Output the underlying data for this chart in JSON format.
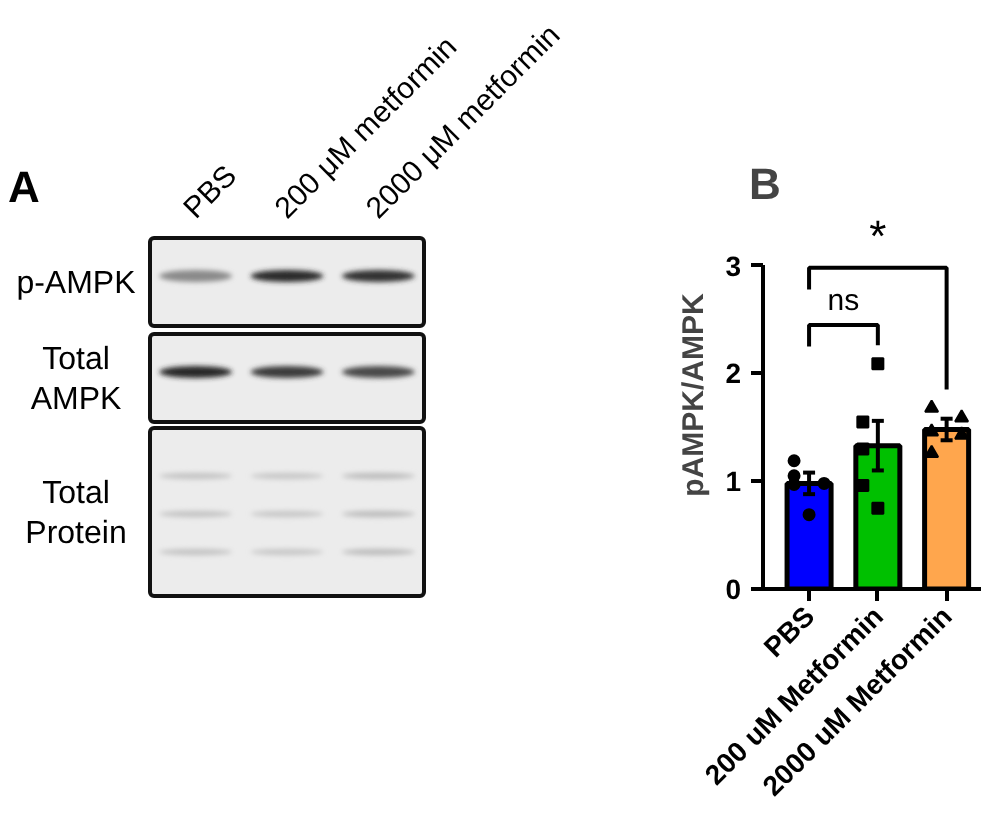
{
  "chart_data": [
    {
      "type": "other",
      "title": "A",
      "categories": [
        "PBS",
        "200 μM metformin",
        "2000 μM metformin"
      ],
      "annotations": [
        "p-AMPK",
        "Total AMPK",
        "Total Protein"
      ]
    },
    {
      "type": "bar",
      "title": "B",
      "ylabel": "pAMPK/AMPK",
      "categories": [
        "PBS",
        "200 uM Metformin",
        "2000 uM Metformin"
      ],
      "values": [
        0.98,
        1.33,
        1.48
      ],
      "colors": [
        "#0000ff",
        "#00c000",
        "#ffa64d"
      ],
      "errors": [
        0.1,
        0.23,
        0.1
      ],
      "ylim": [
        0,
        3
      ],
      "yticks": [
        0,
        1,
        2,
        3
      ],
      "grid": false,
      "annotations": [
        "ns",
        "*"
      ],
      "series": [
        {
          "type": "scatter",
          "marker": "circle",
          "color": "#000000",
          "x": [
            "PBS",
            "PBS",
            "PBS",
            "PBS",
            "PBS"
          ],
          "values": [
            1.19,
            1.05,
            0.98,
            0.97,
            0.69
          ]
        },
        {
          "type": "scatter",
          "marker": "square",
          "color": "#000000",
          "x": [
            "200 uM Metformin",
            "200 uM Metformin",
            "200 uM Metformin",
            "200 uM Metformin",
            "200 uM Metformin"
          ],
          "values": [
            2.09,
            1.55,
            1.3,
            0.96,
            0.75
          ]
        },
        {
          "type": "scatter",
          "marker": "triangle",
          "color": "#000000",
          "x": [
            "2000 uM Metformin",
            "2000 uM Metformin",
            "2000 uM Metformin",
            "2000 uM Metformin",
            "2000 uM Metformin"
          ],
          "values": [
            1.68,
            1.59,
            1.46,
            1.43,
            1.26
          ]
        }
      ]
    }
  ]
}
